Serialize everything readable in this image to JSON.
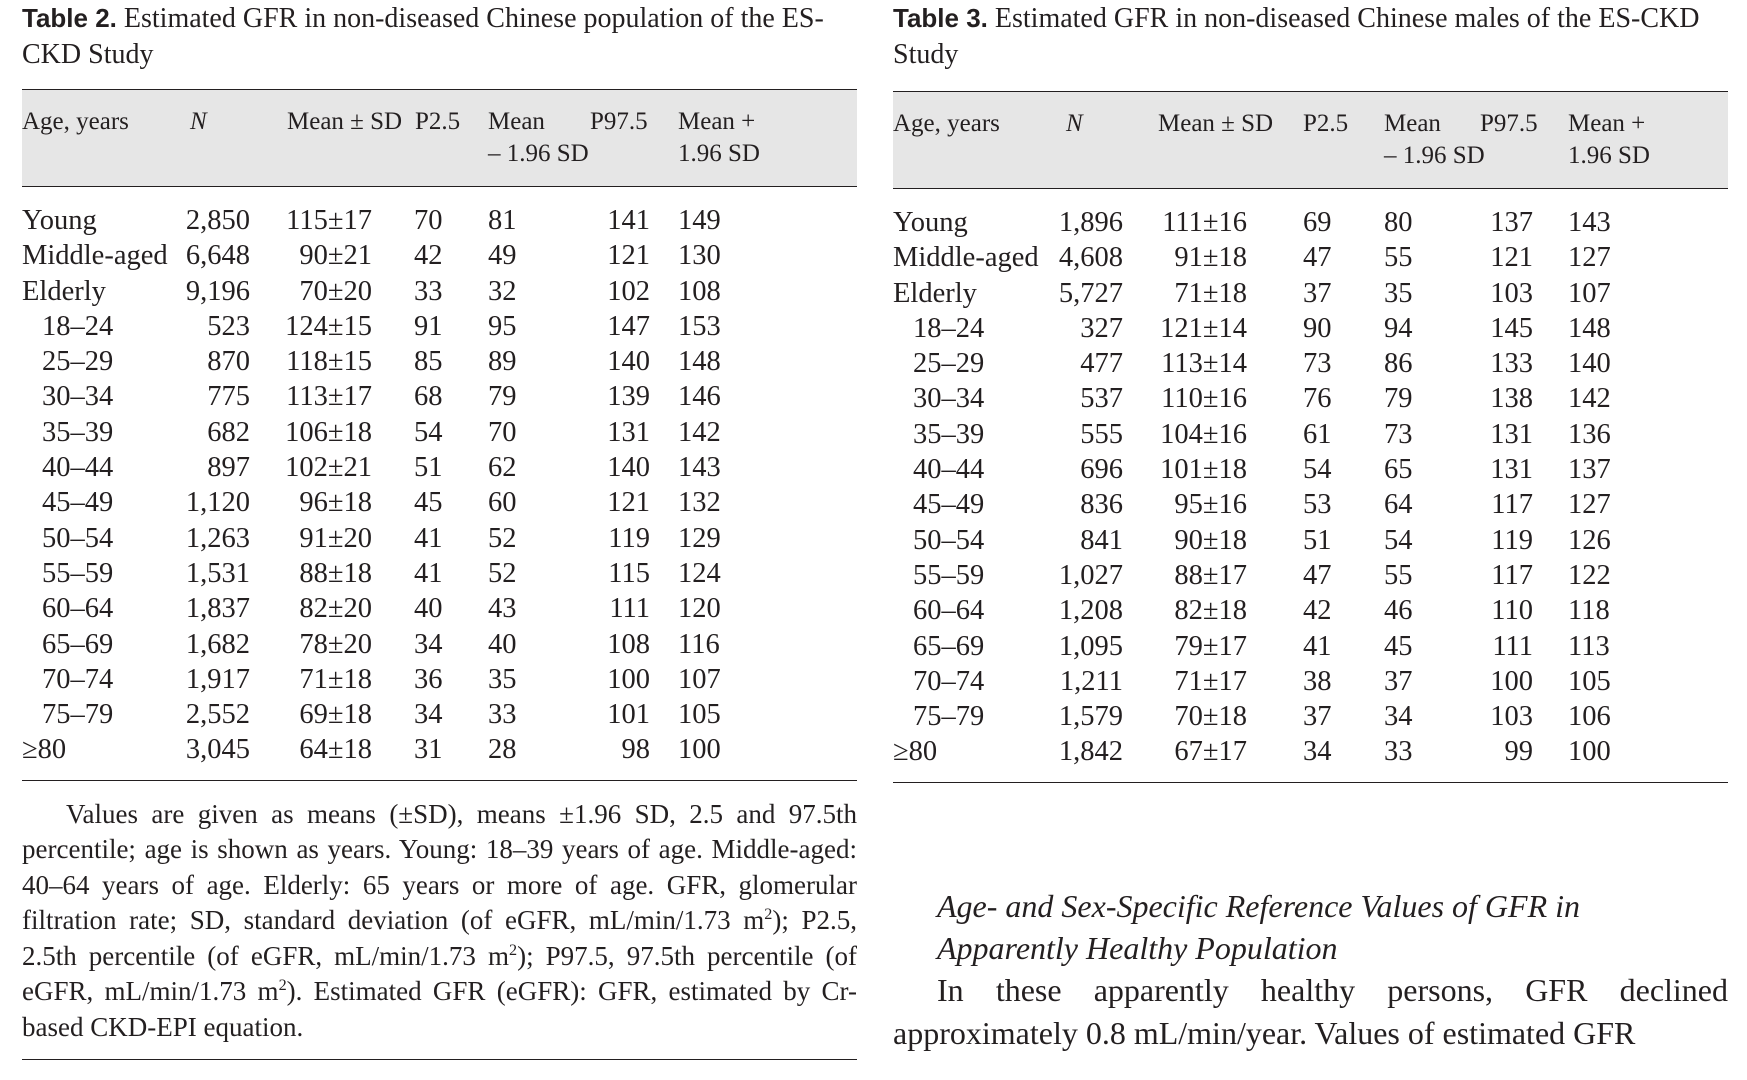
{
  "table2": {
    "label": "Table 2.",
    "title": " Estimated GFR in non-diseased Chinese population of the ES-CKD Study",
    "headers": {
      "age": "Age, years",
      "n": "N",
      "mean_sd": "Mean ± SD",
      "p25": "P2.5",
      "mean_minus_1": "Mean",
      "mean_minus_2": "– 1.96 SD",
      "p975": "P97.5",
      "mean_plus_1": "Mean +",
      "mean_plus_2": "1.96 SD"
    },
    "rows": [
      {
        "age": "Young",
        "n": "2,850",
        "mean_sd": "115±17",
        "p25": "70",
        "mean_minus": "81",
        "p975": "141",
        "mean_plus": "149",
        "indent": false
      },
      {
        "age": "Middle-aged",
        "n": "6,648",
        "mean_sd": "90±21",
        "p25": "42",
        "mean_minus": "49",
        "p975": "121",
        "mean_plus": "130",
        "indent": false
      },
      {
        "age": "Elderly",
        "n": "9,196",
        "mean_sd": "70±20",
        "p25": "33",
        "mean_minus": "32",
        "p975": "102",
        "mean_plus": "108",
        "indent": false
      },
      {
        "age": "18–24",
        "n": "523",
        "mean_sd": "124±15",
        "p25": "91",
        "mean_minus": "95",
        "p975": "147",
        "mean_plus": "153",
        "indent": true
      },
      {
        "age": "25–29",
        "n": "870",
        "mean_sd": "118±15",
        "p25": "85",
        "mean_minus": "89",
        "p975": "140",
        "mean_plus": "148",
        "indent": true
      },
      {
        "age": "30–34",
        "n": "775",
        "mean_sd": "113±17",
        "p25": "68",
        "mean_minus": "79",
        "p975": "139",
        "mean_plus": "146",
        "indent": true
      },
      {
        "age": "35–39",
        "n": "682",
        "mean_sd": "106±18",
        "p25": "54",
        "mean_minus": "70",
        "p975": "131",
        "mean_plus": "142",
        "indent": true
      },
      {
        "age": "40–44",
        "n": "897",
        "mean_sd": "102±21",
        "p25": "51",
        "mean_minus": "62",
        "p975": "140",
        "mean_plus": "143",
        "indent": true
      },
      {
        "age": "45–49",
        "n": "1,120",
        "mean_sd": "96±18",
        "p25": "45",
        "mean_minus": "60",
        "p975": "121",
        "mean_plus": "132",
        "indent": true
      },
      {
        "age": "50–54",
        "n": "1,263",
        "mean_sd": "91±20",
        "p25": "41",
        "mean_minus": "52",
        "p975": "119",
        "mean_plus": "129",
        "indent": true
      },
      {
        "age": "55–59",
        "n": "1,531",
        "mean_sd": "88±18",
        "p25": "41",
        "mean_minus": "52",
        "p975": "115",
        "mean_plus": "124",
        "indent": true
      },
      {
        "age": "60–64",
        "n": "1,837",
        "mean_sd": "82±20",
        "p25": "40",
        "mean_minus": "43",
        "p975": "111",
        "mean_plus": "120",
        "indent": true
      },
      {
        "age": "65–69",
        "n": "1,682",
        "mean_sd": "78±20",
        "p25": "34",
        "mean_minus": "40",
        "p975": "108",
        "mean_plus": "116",
        "indent": true
      },
      {
        "age": "70–74",
        "n": "1,917",
        "mean_sd": "71±18",
        "p25": "36",
        "mean_minus": "35",
        "p975": "100",
        "mean_plus": "107",
        "indent": true
      },
      {
        "age": "75–79",
        "n": "2,552",
        "mean_sd": "69±18",
        "p25": "34",
        "mean_minus": "33",
        "p975": "101",
        "mean_plus": "105",
        "indent": true
      },
      {
        "age": "≥80",
        "n": "3,045",
        "mean_sd": "64±18",
        "p25": "31",
        "mean_minus": "28",
        "p975": "98",
        "mean_plus": "100",
        "indent": false
      }
    ],
    "note_parts": [
      "Values are given as means (±SD), means ±1.96 SD, 2.5 and 97.5th percentile; age is shown as years. Young: 18–39 years of age. Middle-aged: 40–64 years of age. Elderly: 65 years or more of age. GFR, glomerular filtration rate; SD, standard deviation (of eGFR, mL/min/1.73 m",
      "2",
      "); P2.5, 2.5th percentile (of eGFR, mL/min/1.73 m",
      "2",
      "); P97.5, 97.5th percentile (of eGFR, mL/min/1.73 m",
      "2",
      "). Estimated GFR (eGFR): GFR, estimated by Cr-based CKD-EPI equation."
    ]
  },
  "table3": {
    "label": "Table 3.",
    "title": " Estimated GFR in non-diseased Chinese males of the ES-CKD Study",
    "headers": {
      "age": "Age, years",
      "n": "N",
      "mean_sd": "Mean ± SD",
      "p25": "P2.5",
      "mean_minus_1": "Mean",
      "mean_minus_2": "– 1.96 SD",
      "p975": "P97.5",
      "mean_plus_1": "Mean +",
      "mean_plus_2": "1.96 SD"
    },
    "rows": [
      {
        "age": "Young",
        "n": "1,896",
        "mean_sd": "111±16",
        "p25": "69",
        "mean_minus": "80",
        "p975": "137",
        "mean_plus": "143",
        "indent": false
      },
      {
        "age": "Middle-aged",
        "n": "4,608",
        "mean_sd": "91±18",
        "p25": "47",
        "mean_minus": "55",
        "p975": "121",
        "mean_plus": "127",
        "indent": false
      },
      {
        "age": "Elderly",
        "n": "5,727",
        "mean_sd": "71±18",
        "p25": "37",
        "mean_minus": "35",
        "p975": "103",
        "mean_plus": "107",
        "indent": false
      },
      {
        "age": "18–24",
        "n": "327",
        "mean_sd": "121±14",
        "p25": "90",
        "mean_minus": "94",
        "p975": "145",
        "mean_plus": "148",
        "indent": true
      },
      {
        "age": "25–29",
        "n": "477",
        "mean_sd": "113±14",
        "p25": "73",
        "mean_minus": "86",
        "p975": "133",
        "mean_plus": "140",
        "indent": true
      },
      {
        "age": "30–34",
        "n": "537",
        "mean_sd": "110±16",
        "p25": "76",
        "mean_minus": "79",
        "p975": "138",
        "mean_plus": "142",
        "indent": true
      },
      {
        "age": "35–39",
        "n": "555",
        "mean_sd": "104±16",
        "p25": "61",
        "mean_minus": "73",
        "p975": "131",
        "mean_plus": "136",
        "indent": true
      },
      {
        "age": "40–44",
        "n": "696",
        "mean_sd": "101±18",
        "p25": "54",
        "mean_minus": "65",
        "p975": "131",
        "mean_plus": "137",
        "indent": true
      },
      {
        "age": "45–49",
        "n": "836",
        "mean_sd": "95±16",
        "p25": "53",
        "mean_minus": "64",
        "p975": "117",
        "mean_plus": "127",
        "indent": true
      },
      {
        "age": "50–54",
        "n": "841",
        "mean_sd": "90±18",
        "p25": "51",
        "mean_minus": "54",
        "p975": "119",
        "mean_plus": "126",
        "indent": true
      },
      {
        "age": "55–59",
        "n": "1,027",
        "mean_sd": "88±17",
        "p25": "47",
        "mean_minus": "55",
        "p975": "117",
        "mean_plus": "122",
        "indent": true
      },
      {
        "age": "60–64",
        "n": "1,208",
        "mean_sd": "82±18",
        "p25": "42",
        "mean_minus": "46",
        "p975": "110",
        "mean_plus": "118",
        "indent": true
      },
      {
        "age": "65–69",
        "n": "1,095",
        "mean_sd": "79±17",
        "p25": "41",
        "mean_minus": "45",
        "p975": "111",
        "mean_plus": "113",
        "indent": true
      },
      {
        "age": "70–74",
        "n": "1,211",
        "mean_sd": "71±17",
        "p25": "38",
        "mean_minus": "37",
        "p975": "100",
        "mean_plus": "105",
        "indent": true
      },
      {
        "age": "75–79",
        "n": "1,579",
        "mean_sd": "70±18",
        "p25": "37",
        "mean_minus": "34",
        "p975": "103",
        "mean_plus": "106",
        "indent": true
      },
      {
        "age": "≥80",
        "n": "1,842",
        "mean_sd": "67±17",
        "p25": "34",
        "mean_minus": "33",
        "p975": "99",
        "mean_plus": "100",
        "indent": false
      }
    ]
  },
  "section": {
    "heading": "Age- and Sex-Specific Reference Values of GFR in Apparently Healthy Population",
    "body": "In these apparently healthy persons, GFR declined approximately 0.8 mL/min/year. Values of estimated GFR"
  }
}
